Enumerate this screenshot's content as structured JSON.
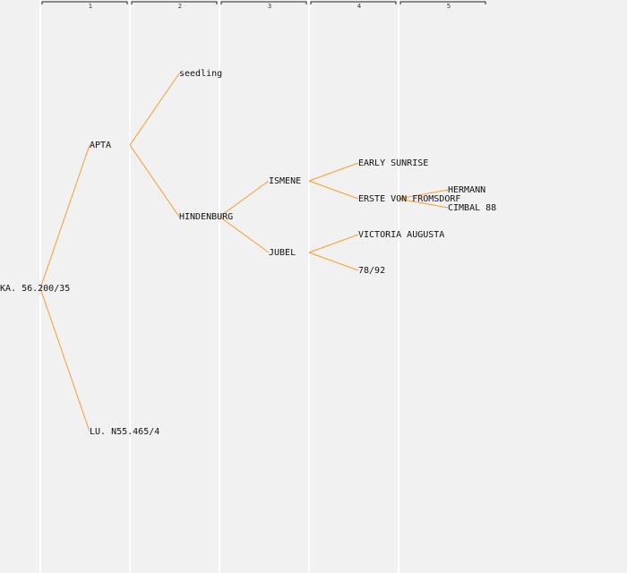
{
  "generations": [
    "1",
    "2",
    "3",
    "4",
    "5"
  ],
  "colors": {
    "background": "#f1f1f1",
    "column_divider": "#ffffff",
    "connector": "#ff9a2e",
    "text": "#111111"
  },
  "tree": {
    "label": "KA. 56.200/35",
    "children": [
      {
        "label": "APTA",
        "children": [
          {
            "label": "seedling"
          },
          {
            "label": "HINDENBURG",
            "children": [
              {
                "label": "ISMENE",
                "children": [
                  {
                    "label": "EARLY SUNRISE"
                  },
                  {
                    "label": "ERSTE VON FROMSDORF",
                    "children": [
                      {
                        "label": "HERMANN"
                      },
                      {
                        "label": "CIMBAL 88"
                      }
                    ]
                  }
                ]
              },
              {
                "label": "JUBEL",
                "children": [
                  {
                    "label": "VICTORIA AUGUSTA"
                  },
                  {
                    "label": "78/92"
                  }
                ]
              }
            ]
          }
        ]
      },
      {
        "label": "LU. N55.465/4"
      }
    ]
  }
}
